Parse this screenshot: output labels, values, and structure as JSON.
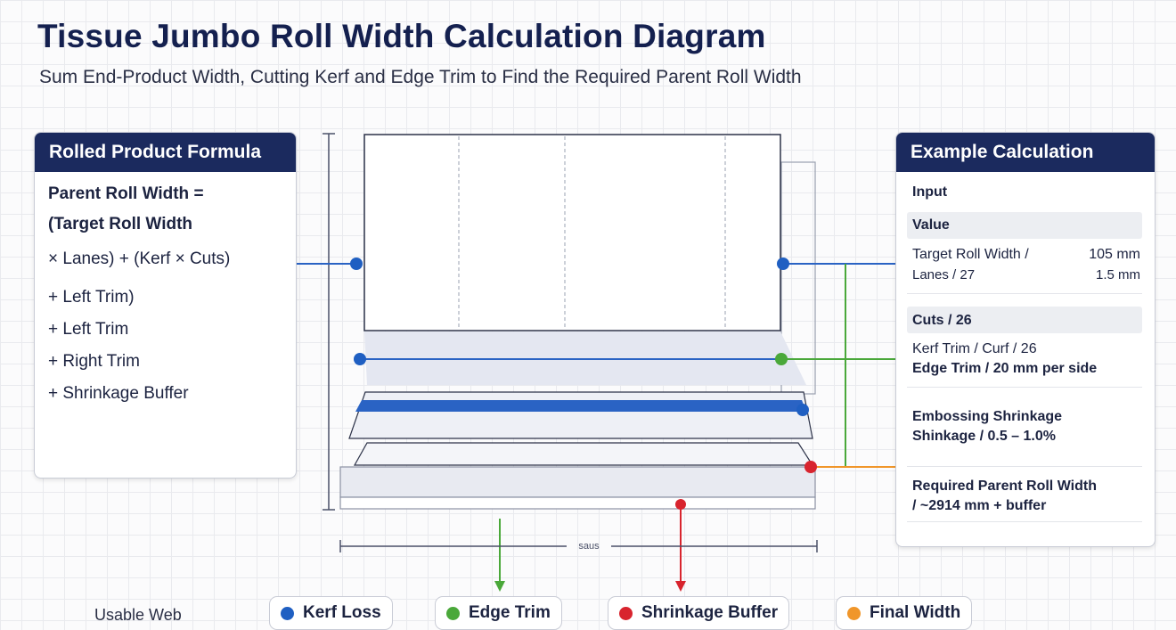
{
  "header": {
    "title": "Tissue Jumbo Roll Width Calculation Diagram",
    "subtitle": "Sum End-Product Width, Cutting Kerf and Edge Trim to Find the Required Parent Roll Width"
  },
  "formula_panel": {
    "title": "Rolled Product Formula",
    "lines": [
      "Parent Roll Width =",
      "(Target Roll Width",
      "× Lanes) + (Kerf × Cuts)",
      "+ Left Trim)",
      "+ Left Trim",
      "+ Right Trim",
      "+ Shrinkage Buffer"
    ]
  },
  "example_panel": {
    "title": "Example Calculation",
    "input_label": "Input",
    "value_label": "Value",
    "row1_label": "Target Roll Width /",
    "row1_value": "105 mm",
    "row2_label": "Lanes / 27",
    "row2_value": "1.5 mm",
    "cuts_label": "Cuts / 26",
    "kerf_line": "Kerf Trim  / Curf / 26",
    "edge_line": "Edge Trim / 20 mm per side",
    "emboss_line1": "Embossing Shrinkage",
    "emboss_line2": "Shinkage  / 0.5 – 1.0%",
    "required_line1": "Required Parent Roll Width",
    "required_line2": "/ ~2914 mm + buffer"
  },
  "diagram": {
    "dimension_label": "saus"
  },
  "legend": {
    "usable_web": "Usable Web",
    "items": [
      {
        "label": "Kerf Loss",
        "color": "#1f5fc2"
      },
      {
        "label": "Edge Trim",
        "color": "#4aa83a"
      },
      {
        "label": "Shrinkage Buffer",
        "color": "#d8242e"
      },
      {
        "label": "Final Width",
        "color": "#f0962a"
      }
    ]
  },
  "colors": {
    "blue": "#1f5fc2",
    "green": "#4aa83a",
    "red": "#d8242e",
    "orange": "#f0962a",
    "navy": "#1b2a5e"
  }
}
